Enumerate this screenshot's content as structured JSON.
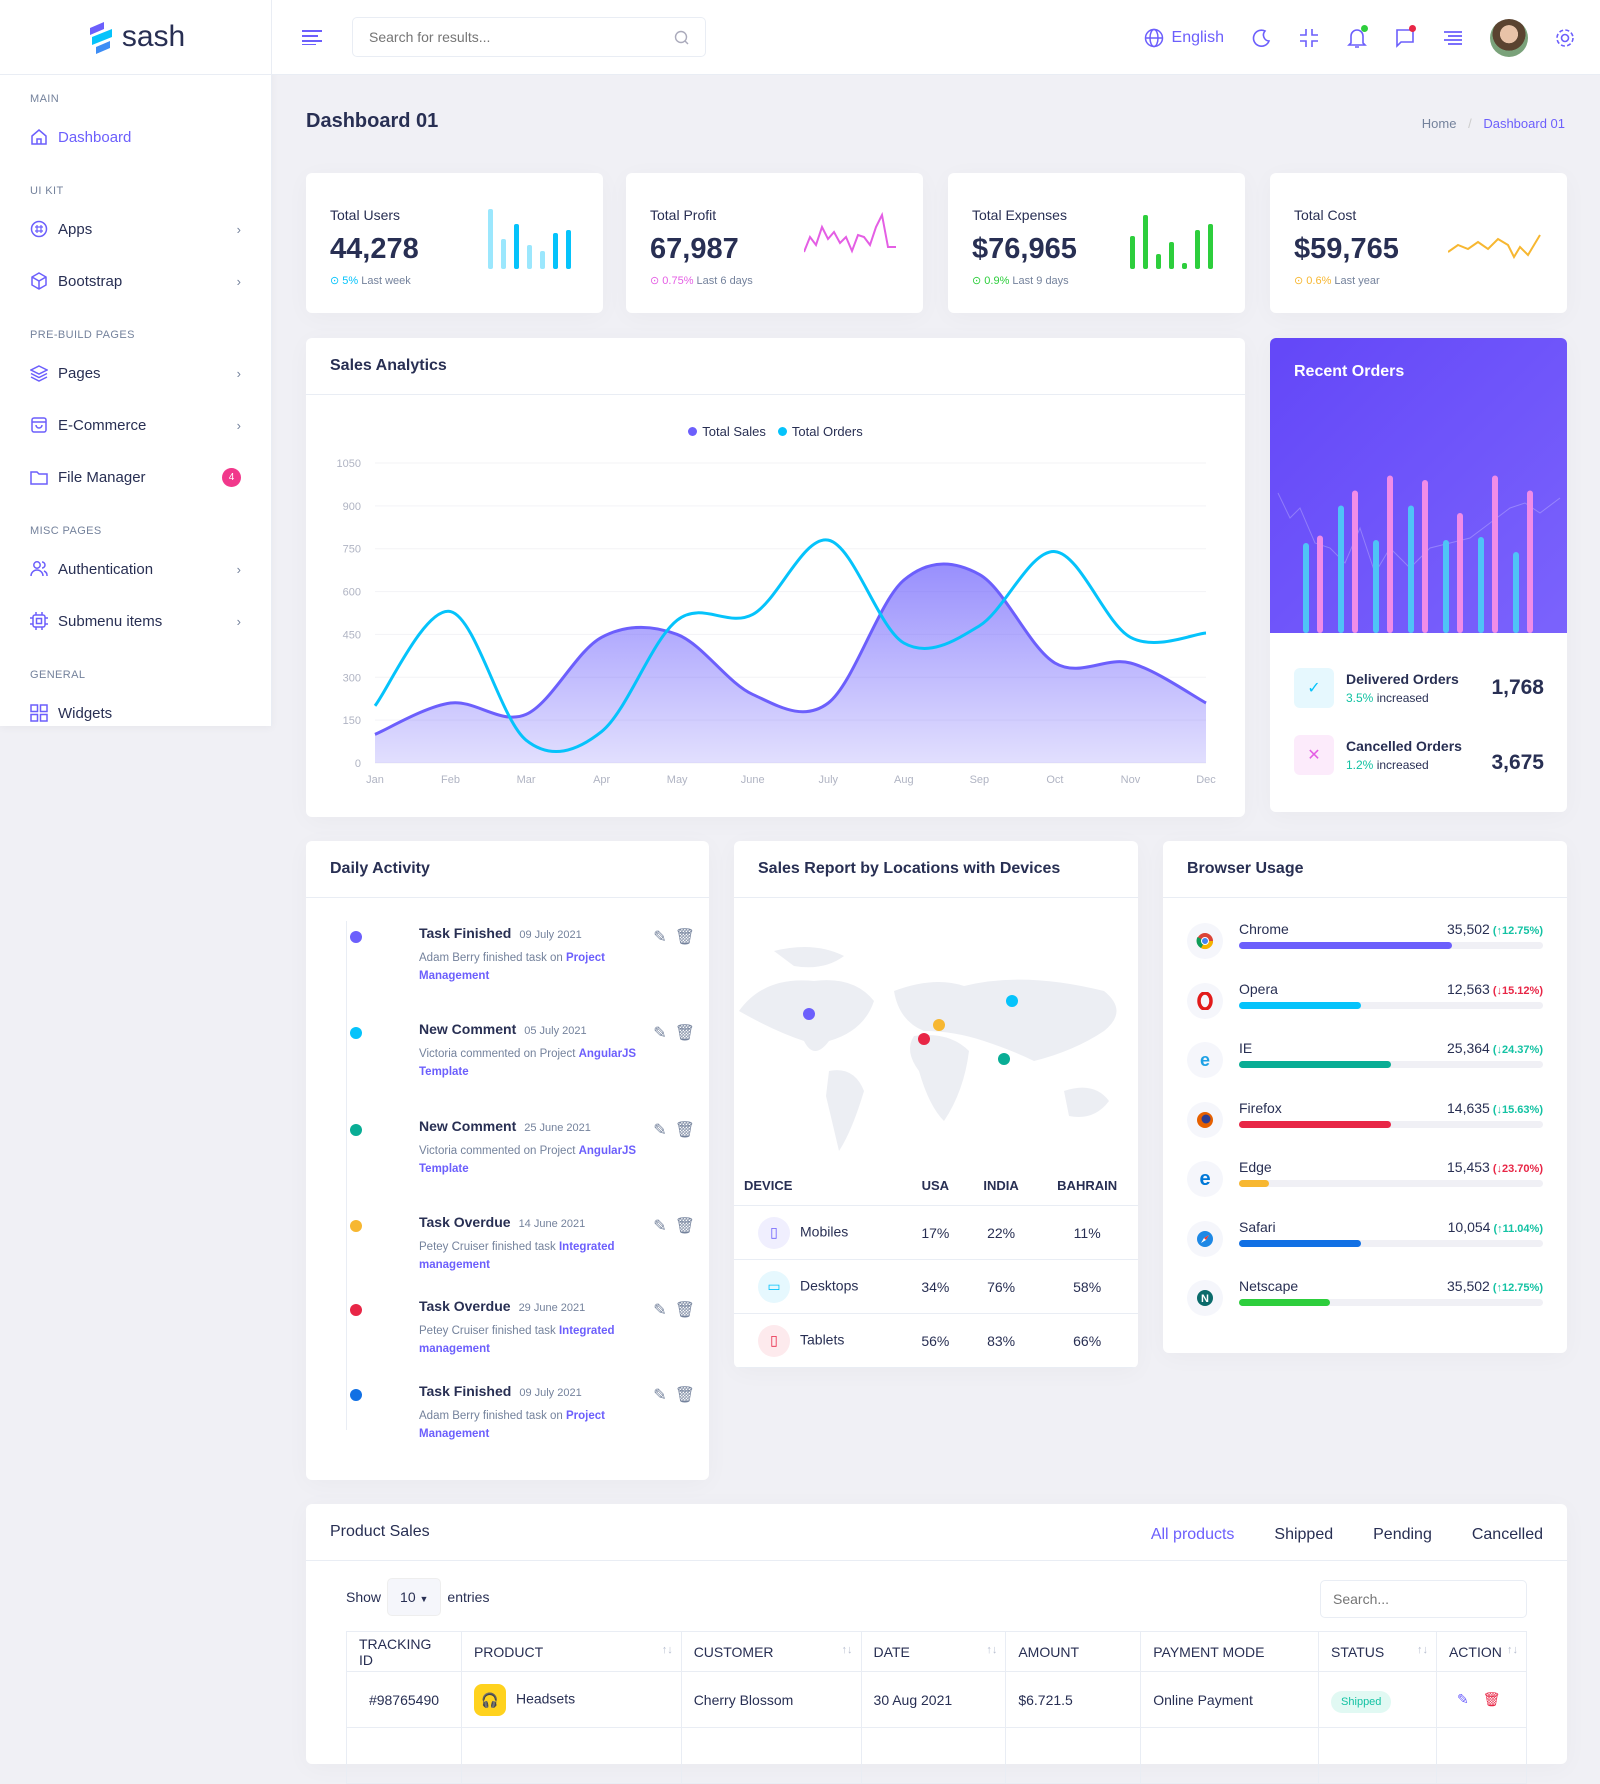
{
  "brand": {
    "name": "sash"
  },
  "sidebar": {
    "sections": [
      {
        "title": "MAIN",
        "items": [
          {
            "label": "Dashboard",
            "icon": "home-icon",
            "active": true
          }
        ]
      },
      {
        "title": "UI KIT",
        "items": [
          {
            "label": "Apps",
            "icon": "apps-icon"
          },
          {
            "label": "Bootstrap",
            "icon": "package-icon"
          }
        ]
      },
      {
        "title": "PRE-BUILD PAGES",
        "items": [
          {
            "label": "Pages",
            "icon": "layers-icon"
          },
          {
            "label": "E-Commerce",
            "icon": "shopping-bag-icon"
          },
          {
            "label": "File Manager",
            "icon": "folder-icon",
            "badge": "4"
          }
        ]
      },
      {
        "title": "MISC PAGES",
        "items": [
          {
            "label": "Authentication",
            "icon": "users-icon"
          },
          {
            "label": "Submenu items",
            "icon": "cpu-icon"
          }
        ]
      },
      {
        "title": "GENERAL",
        "items": [
          {
            "label": "Widgets",
            "icon": "grid-icon"
          }
        ]
      }
    ]
  },
  "header": {
    "search_placeholder": "Search for results...",
    "language": "English"
  },
  "page": {
    "title": "Dashboard 01",
    "breadcrumb": [
      "Home",
      "Dashboard 01"
    ]
  },
  "stats": [
    {
      "title": "Total Users",
      "value": "44,278",
      "change": "5%",
      "period": "Last week",
      "color": "#05c3fb"
    },
    {
      "title": "Total Profit",
      "value": "67,987",
      "change": "0.75%",
      "period": "Last 6 days",
      "color": "#e45ee4"
    },
    {
      "title": "Total Expenses",
      "value": "$76,965",
      "change": "0.9%",
      "period": "Last 9 days",
      "color": "#2dce3c"
    },
    {
      "title": "Total Cost",
      "value": "$59,765",
      "change": "0.6%",
      "period": "Last year",
      "color": "#f7b731"
    }
  ],
  "chart_data": {
    "type": "area",
    "title": "Sales Analytics",
    "categories": [
      "Jan",
      "Feb",
      "Mar",
      "Apr",
      "May",
      "June",
      "July",
      "Aug",
      "Sep",
      "Oct",
      "Nov",
      "Dec"
    ],
    "ylim": [
      0,
      1050
    ],
    "yticks": [
      0,
      150,
      300,
      450,
      600,
      750,
      900,
      1050
    ],
    "grid": true,
    "legend": "top",
    "series": [
      {
        "name": "Total Sales",
        "color": "#6c5ffc",
        "values": [
          100,
          210,
          170,
          440,
          450,
          240,
          210,
          640,
          660,
          350,
          350,
          210
        ]
      },
      {
        "name": "Total Orders",
        "color": "#05c3fb",
        "values": [
          200,
          530,
          80,
          110,
          500,
          520,
          780,
          420,
          480,
          740,
          440,
          455
        ]
      }
    ]
  },
  "recent_orders": {
    "title": "Recent Orders",
    "items": [
      {
        "label": "Delivered Orders",
        "change": "3.5%",
        "note": "increased",
        "value": "1,768"
      },
      {
        "label": "Cancelled Orders",
        "change": "1.2%",
        "note": "increased",
        "value": "3,675"
      }
    ]
  },
  "daily_activity": {
    "title": "Daily Activity",
    "items": [
      {
        "title": "Task Finished",
        "date": "09 July 2021",
        "text": "Adam Berry finished task on ",
        "link": "Project Management",
        "color": "#6c5ffc"
      },
      {
        "title": "New Comment",
        "date": "05 July 2021",
        "text": "Victoria commented on Project ",
        "link": "AngularJS Template",
        "color": "#05c3fb"
      },
      {
        "title": "New Comment",
        "date": "25 June 2021",
        "text": "Victoria commented on Project ",
        "link": "AngularJS Template",
        "color": "#09ad95"
      },
      {
        "title": "Task Overdue",
        "date": "14 June 2021",
        "text": "Petey Cruiser finished task ",
        "link": "Integrated management",
        "color": "#f7b731"
      },
      {
        "title": "Task Overdue",
        "date": "29 June 2021",
        "text": "Petey Cruiser finished task ",
        "link": "Integrated management",
        "color": "#e82646"
      },
      {
        "title": "Task Finished",
        "date": "09 July 2021",
        "text": "Adam Berry finished task on ",
        "link": "Project Management",
        "color": "#1170e4"
      }
    ]
  },
  "sales_report": {
    "title": "Sales Report by Locations with Devices",
    "columns": [
      "DEVICE",
      "USA",
      "INDIA",
      "BAHRAIN"
    ],
    "rows": [
      [
        "Mobiles",
        "17%",
        "22%",
        "11%"
      ],
      [
        "Desktops",
        "34%",
        "76%",
        "58%"
      ],
      [
        "Tablets",
        "56%",
        "83%",
        "66%"
      ]
    ]
  },
  "browser_usage": {
    "title": "Browser Usage",
    "items": [
      {
        "name": "Chrome",
        "value": "35,502",
        "change": "12.75%",
        "dir": "up",
        "pct": 70,
        "color": "#6c5ffc"
      },
      {
        "name": "Opera",
        "value": "12,563",
        "change": "15.12%",
        "dir": "down",
        "pct": 40,
        "color": "#05c3fb"
      },
      {
        "name": "IE",
        "value": "25,364",
        "change": "24.37%",
        "dir": "down",
        "pct": 50,
        "color": "#09ad95"
      },
      {
        "name": "Firefox",
        "value": "14,635",
        "change": "15.63%",
        "dir": "down",
        "pct": 50,
        "color": "#e82646"
      },
      {
        "name": "Edge",
        "value": "15,453",
        "change": "23.70%",
        "dir": "down",
        "pct": 10,
        "color": "#f7b731"
      },
      {
        "name": "Safari",
        "value": "10,054",
        "change": "11.04%",
        "dir": "up",
        "pct": 40,
        "color": "#1170e4"
      },
      {
        "name": "Netscape",
        "value": "35,502",
        "change": "12.75%",
        "dir": "up",
        "pct": 30,
        "color": "#2dce3c"
      }
    ]
  },
  "product_sales": {
    "title": "Product Sales",
    "tabs": [
      "All products",
      "Shipped",
      "Pending",
      "Cancelled"
    ],
    "show": "Show",
    "entries_value": "10",
    "entries": "entries",
    "search_placeholder": "Search...",
    "columns": [
      "TRACKING ID",
      "PRODUCT",
      "CUSTOMER",
      "DATE",
      "AMOUNT",
      "PAYMENT MODE",
      "STATUS",
      "ACTION"
    ],
    "rows": [
      {
        "id": "#98765490",
        "product": "Headsets",
        "customer": "Cherry Blossom",
        "date": "30 Aug 2021",
        "amount": "$6.721.5",
        "payment": "Online Payment",
        "status": "Shipped"
      }
    ]
  }
}
